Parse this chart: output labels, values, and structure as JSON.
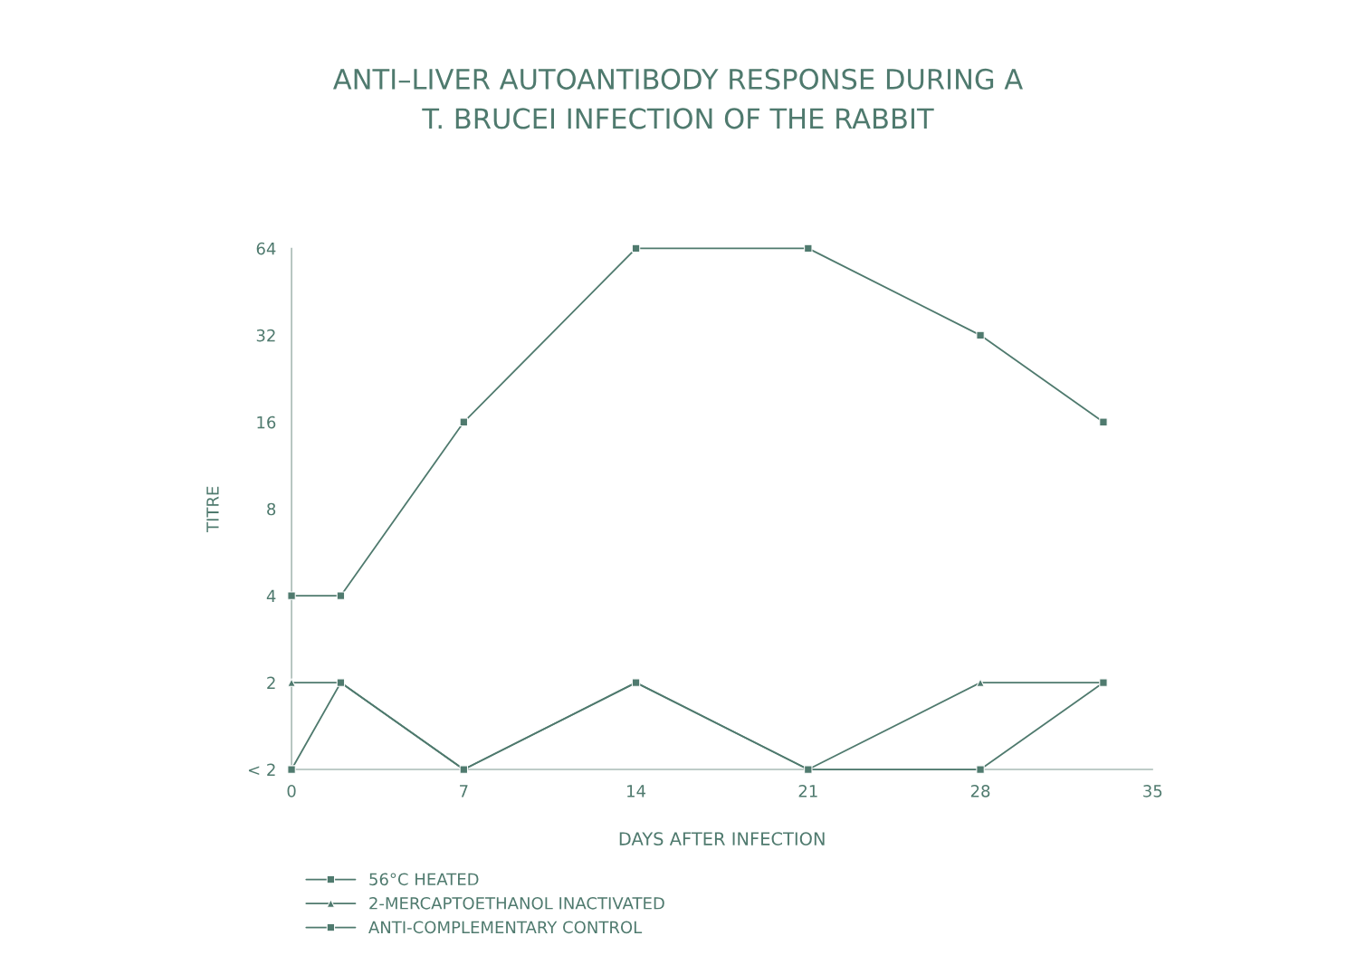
{
  "chart_data": {
    "type": "line",
    "title": "ANTI–LIVER AUTOANTIBODY RESPONSE DURING A\nT. BRUCEI INFECTION OF THE RABBIT",
    "xlabel": "DAYS AFTER INFECTION",
    "ylabel": "TITRE",
    "log": "y",
    "xlim": [
      0,
      35
    ],
    "xticks": [
      0,
      7,
      14,
      21,
      28,
      35
    ],
    "ylim": [
      1,
      64
    ],
    "yticks": [
      {
        "value": 1,
        "label": "< 2"
      },
      2,
      4,
      8,
      16,
      32,
      64
    ],
    "grid": false,
    "legend": "bottom left",
    "series": [
      {
        "name": "56°C HEATED",
        "color": "#4f7a6e",
        "marker": "square",
        "x": [
          0,
          2,
          7,
          14,
          21,
          28,
          33
        ],
        "values": [
          4,
          4,
          16,
          64,
          64,
          32,
          16
        ]
      },
      {
        "name": "2-MERCAPTOETHANOL INACTIVATED",
        "color": "#4f7a6e",
        "marker": "triangle",
        "x": [
          0,
          2,
          7,
          14,
          21,
          28,
          33
        ],
        "values": [
          2,
          2,
          1,
          2,
          1,
          2,
          2
        ]
      },
      {
        "name": "ANTI-COMPLEMENTARY CONTROL",
        "color": "#4f7a6e",
        "marker": "square",
        "x": [
          0,
          2,
          7,
          14,
          21,
          28,
          33
        ],
        "values": [
          1,
          2,
          1,
          2,
          1,
          1,
          2
        ]
      }
    ]
  }
}
